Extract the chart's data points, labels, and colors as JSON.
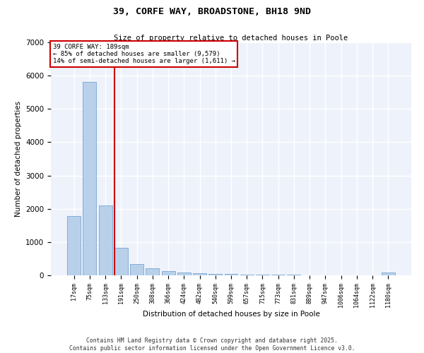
{
  "title": "39, CORFE WAY, BROADSTONE, BH18 9ND",
  "subtitle": "Size of property relative to detached houses in Poole",
  "xlabel": "Distribution of detached houses by size in Poole",
  "ylabel": "Number of detached properties",
  "bar_color": "#b8d0ea",
  "bar_edge_color": "#6699cc",
  "background_color": "#eef2fb",
  "annotation_box_color": "#cc0000",
  "vline_color": "#cc0000",
  "categories": [
    "17sqm",
    "75sqm",
    "133sqm",
    "191sqm",
    "250sqm",
    "308sqm",
    "366sqm",
    "424sqm",
    "482sqm",
    "540sqm",
    "599sqm",
    "657sqm",
    "715sqm",
    "773sqm",
    "831sqm",
    "889sqm",
    "947sqm",
    "1006sqm",
    "1064sqm",
    "1122sqm",
    "1180sqm"
  ],
  "values": [
    1780,
    5820,
    2100,
    820,
    350,
    210,
    120,
    85,
    65,
    50,
    40,
    30,
    22,
    18,
    14,
    10,
    8,
    6,
    5,
    4,
    80
  ],
  "ylim": [
    0,
    7000
  ],
  "yticks": [
    0,
    1000,
    2000,
    3000,
    4000,
    5000,
    6000,
    7000
  ],
  "annotation_text": "39 CORFE WAY: 189sqm\n← 85% of detached houses are smaller (9,579)\n14% of semi-detached houses are larger (1,611) →",
  "footnote_line1": "Contains HM Land Registry data © Crown copyright and database right 2025.",
  "footnote_line2": "Contains public sector information licensed under the Open Government Licence v3.0.",
  "vline_x": 2.575
}
